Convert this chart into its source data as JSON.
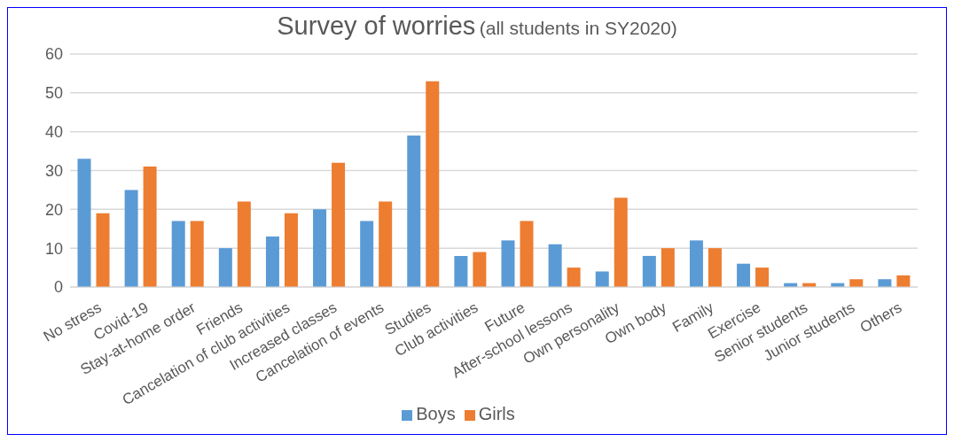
{
  "chart_data": {
    "type": "bar",
    "title": "Survey of worries",
    "subtitle": "(all students in SY2020)",
    "categories": [
      "No stress",
      "Covid-19",
      "Stay-at-home order",
      "Friends",
      "Cancelation of club activities",
      "Increased classes",
      "Cancelation of events",
      "Studies",
      "Club activities",
      "Future",
      "After-school lessons",
      "Own personality",
      "Own body",
      "Family",
      "Exercise",
      "Senior students",
      "Junior students",
      "Others"
    ],
    "series": [
      {
        "name": "Boys",
        "color": "#5b9bd5",
        "values": [
          33,
          25,
          17,
          10,
          13,
          20,
          17,
          39,
          8,
          12,
          11,
          4,
          8,
          12,
          6,
          1,
          1,
          2
        ]
      },
      {
        "name": "Girls",
        "color": "#ed7d31",
        "values": [
          19,
          31,
          17,
          22,
          19,
          32,
          22,
          53,
          9,
          17,
          5,
          23,
          10,
          10,
          5,
          1,
          2,
          3
        ]
      }
    ],
    "ylim": [
      0,
      60
    ],
    "yticks": [
      0,
      10,
      20,
      30,
      40,
      50,
      60
    ],
    "grid": "y",
    "legend": "bottom"
  }
}
